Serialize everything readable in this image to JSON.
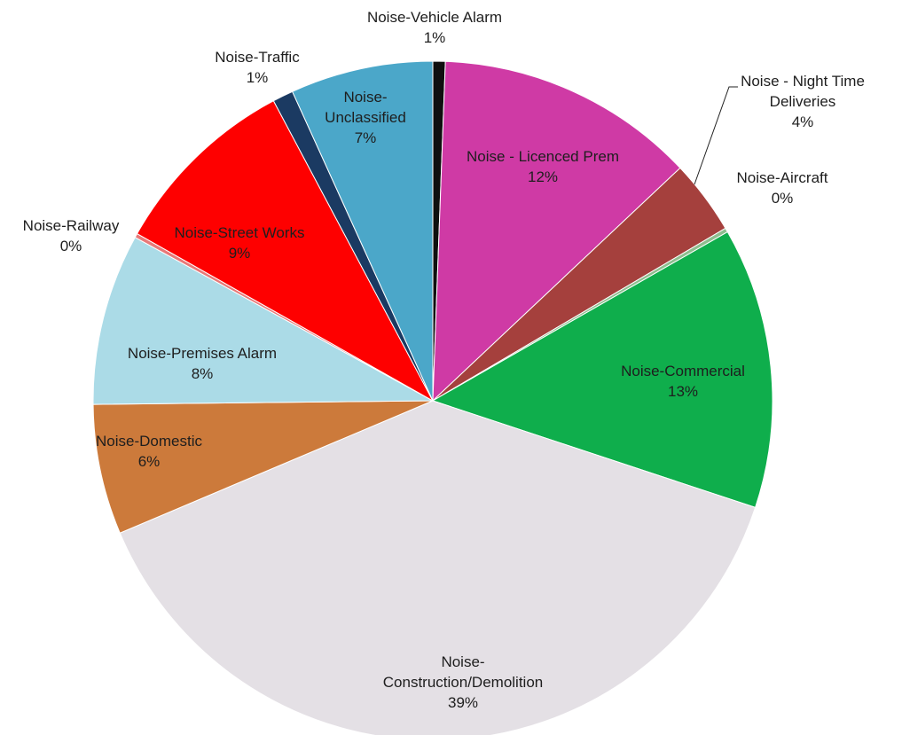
{
  "chart_data": {
    "type": "pie",
    "title": "",
    "start_angle_deg": 0,
    "direction": "clockwise",
    "slices": [
      {
        "name": "Noise-Vehicle Alarm",
        "pct_label": "1%",
        "value": 0.6,
        "color": "#0f0f0f"
      },
      {
        "name": "Noise - Licenced Prem",
        "pct_label": "12%",
        "value": 12.6,
        "color": "#cf3aa5"
      },
      {
        "name": "Noise - Night Time Deliveries",
        "pct_label": "4%",
        "value": 3.6,
        "color": "#a5403d"
      },
      {
        "name": "Noise-Aircraft",
        "pct_label": "0%",
        "value": 0.2,
        "color": "#8fbe8f"
      },
      {
        "name": "Noise-Commercial",
        "pct_label": "13%",
        "value": 13.6,
        "color": "#0fae4c"
      },
      {
        "name": "Noise-Construction/Demolition",
        "pct_label": "39%",
        "value": 39.2,
        "color": "#e4e0e5"
      },
      {
        "name": "Noise-Domestic",
        "pct_label": "6%",
        "value": 6.3,
        "color": "#cc7a3b"
      },
      {
        "name": "Noise-Premises Alarm",
        "pct_label": "8%",
        "value": 8.3,
        "color": "#abdbe7"
      },
      {
        "name": "Noise-Railway",
        "pct_label": "0%",
        "value": 0.2,
        "color": "#e87878"
      },
      {
        "name": "Noise-Street Works",
        "pct_label": "9%",
        "value": 9.2,
        "color": "#fe0000"
      },
      {
        "name": "Noise-Traffic",
        "pct_label": "1%",
        "value": 1.0,
        "color": "#1b3a62"
      },
      {
        "name": "Noise-Unclassified",
        "pct_label": "7%",
        "value": 6.9,
        "color": "#4ba7c9"
      }
    ]
  }
}
